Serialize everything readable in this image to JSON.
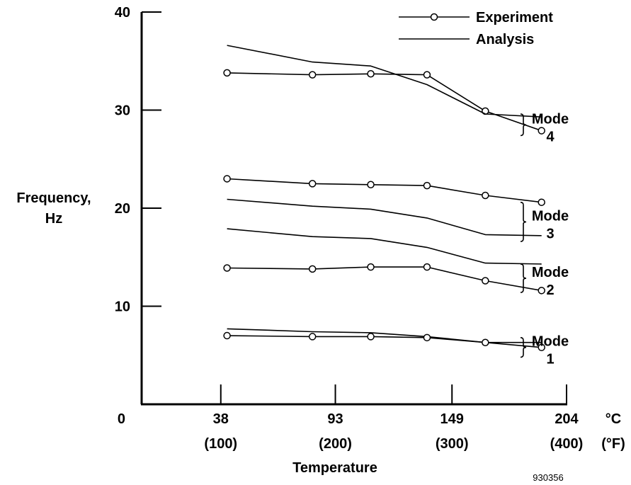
{
  "chart_data": {
    "type": "line",
    "title": "",
    "xlabel": "Temperature",
    "ylabel_line1": "Frequency,",
    "ylabel_line2": "Hz",
    "xlim": [
      0,
      204
    ],
    "ylim": [
      0,
      40
    ],
    "grid": false,
    "legend_position": "top-right",
    "y_ticks": [
      {
        "value": 0,
        "label": "0"
      },
      {
        "value": 10,
        "label": "10"
      },
      {
        "value": 20,
        "label": "20"
      },
      {
        "value": 30,
        "label": "30"
      },
      {
        "value": 40,
        "label": "40"
      }
    ],
    "x_ticks": [
      {
        "value": 38,
        "c": "38",
        "f": "(100)"
      },
      {
        "value": 93,
        "c": "93",
        "f": "(200)"
      },
      {
        "value": 149,
        "c": "149",
        "f": "(300)"
      },
      {
        "value": 204,
        "c": "204",
        "f": "(400)"
      }
    ],
    "x_unit_c": "°C",
    "x_unit_f": "(°F)",
    "figure_id": "930356",
    "legend": {
      "experiment": "Experiment",
      "analysis": "Analysis"
    },
    "series": [
      {
        "name": "Experiment",
        "mode": "4",
        "marker": "circle",
        "x": [
          41,
          82,
          110,
          137,
          165,
          192
        ],
        "y": [
          33.8,
          33.6,
          33.7,
          33.6,
          29.9,
          27.9
        ]
      },
      {
        "name": "Analysis",
        "mode": "4",
        "marker": "none",
        "x": [
          41,
          82,
          110,
          137,
          165,
          192
        ],
        "y": [
          36.6,
          34.9,
          34.5,
          32.6,
          29.6,
          29.3
        ]
      },
      {
        "name": "Experiment",
        "mode": "3",
        "marker": "circle",
        "x": [
          41,
          82,
          110,
          137,
          165,
          192
        ],
        "y": [
          23.0,
          22.5,
          22.4,
          22.3,
          21.3,
          20.6
        ]
      },
      {
        "name": "Analysis",
        "mode": "3",
        "marker": "none",
        "x": [
          41,
          82,
          110,
          137,
          165,
          192
        ],
        "y": [
          20.9,
          20.2,
          19.9,
          19.0,
          17.3,
          17.2
        ]
      },
      {
        "name": "Analysis",
        "mode": "2",
        "marker": "none",
        "x": [
          41,
          82,
          110,
          137,
          165,
          192
        ],
        "y": [
          17.9,
          17.1,
          16.9,
          16.0,
          14.4,
          14.3
        ]
      },
      {
        "name": "Experiment",
        "mode": "2",
        "marker": "circle",
        "x": [
          41,
          82,
          110,
          137,
          165,
          192
        ],
        "y": [
          13.9,
          13.8,
          14.0,
          14.0,
          12.6,
          11.6
        ]
      },
      {
        "name": "Analysis",
        "mode": "1",
        "marker": "none",
        "x": [
          41,
          82,
          110,
          137,
          165,
          192
        ],
        "y": [
          7.7,
          7.4,
          7.3,
          6.9,
          6.3,
          6.3
        ]
      },
      {
        "name": "Experiment",
        "mode": "1",
        "marker": "circle",
        "x": [
          41,
          82,
          110,
          137,
          165,
          192
        ],
        "y": [
          7.0,
          6.9,
          6.9,
          6.8,
          6.3,
          5.8
        ]
      }
    ],
    "mode_labels": [
      {
        "word": "Mode",
        "number": "4",
        "y_top": 29.6,
        "y_bottom": 27.4
      },
      {
        "word": "Mode",
        "number": "3",
        "y_top": 20.6,
        "y_bottom": 16.6
      },
      {
        "word": "Mode",
        "number": "2",
        "y_top": 14.3,
        "y_bottom": 11.4
      },
      {
        "word": "Mode",
        "number": "1",
        "y_top": 6.8,
        "y_bottom": 4.8
      }
    ]
  }
}
